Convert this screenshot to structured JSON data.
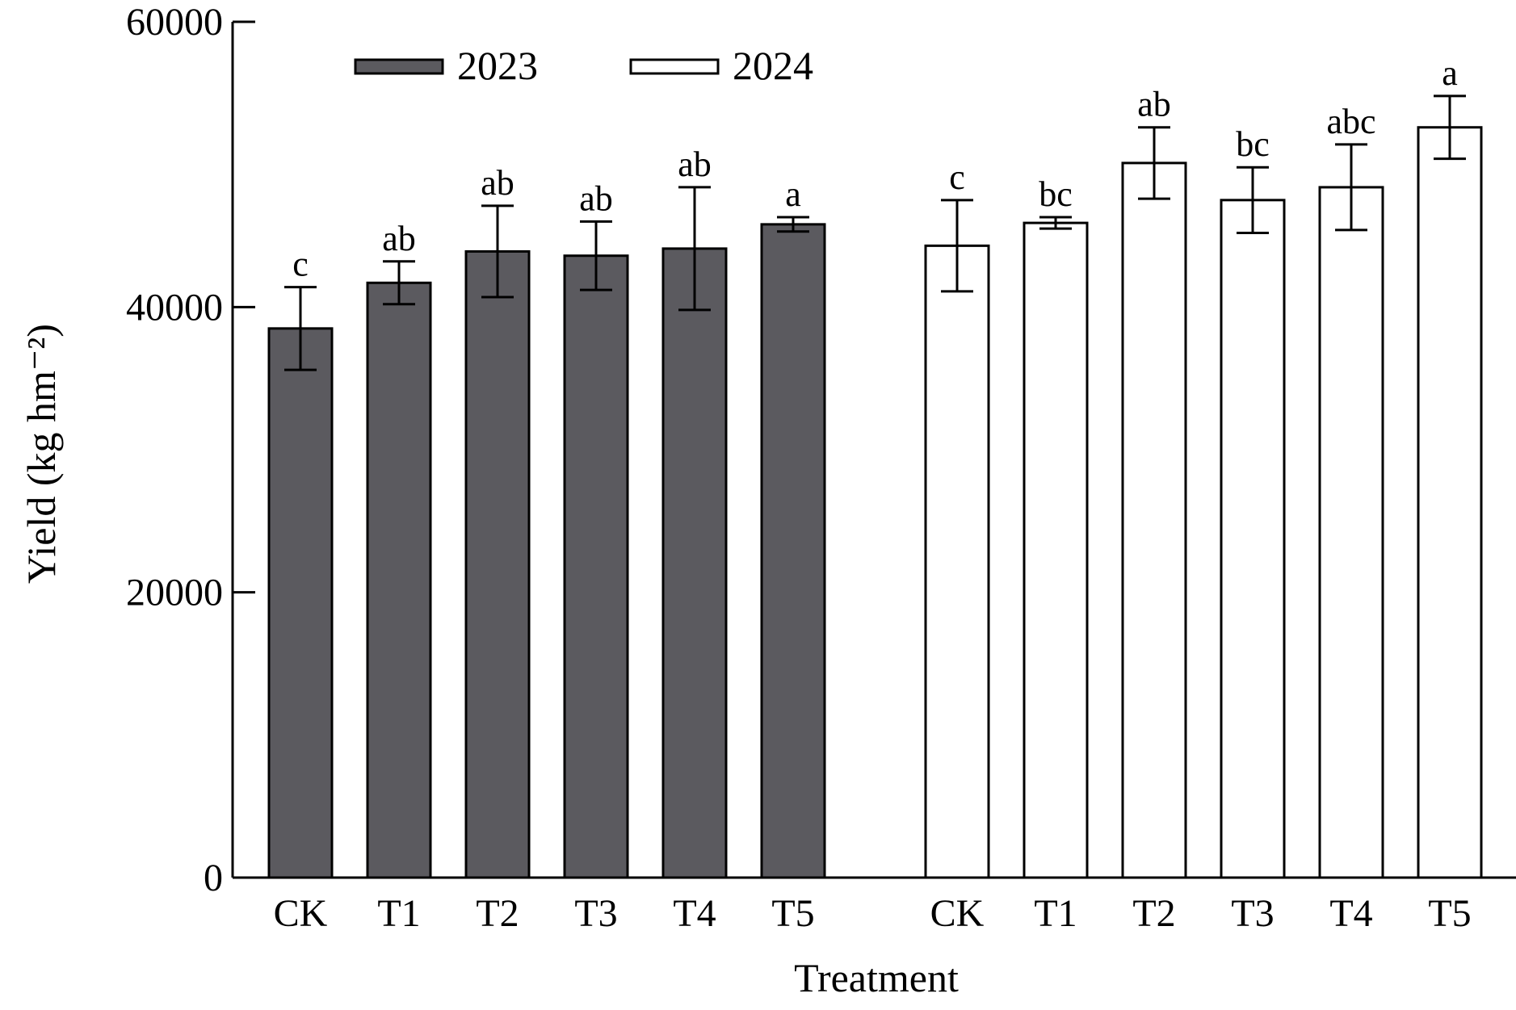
{
  "chart_data": {
    "type": "bar",
    "xlabel": "Treatment",
    "ylabel": "Yield (kg hm⁻²)",
    "ylim": [
      0,
      60000
    ],
    "yticks": [
      0,
      20000,
      40000,
      60000
    ],
    "legend_position": "top-left",
    "groups": [
      {
        "series": "2023",
        "color": "#5b5a5f",
        "categories": [
          "CK",
          "T1",
          "T2",
          "T3",
          "T4",
          "T5"
        ],
        "values": [
          38500,
          41700,
          43900,
          43600,
          44100,
          45800
        ],
        "errors": [
          2900,
          1500,
          3200,
          2400,
          4300,
          500
        ],
        "significance": [
          "c",
          "ab",
          "ab",
          "ab",
          "ab",
          "a"
        ]
      },
      {
        "series": "2024",
        "color": "#ffffff",
        "categories": [
          "CK",
          "T1",
          "T2",
          "T3",
          "T4",
          "T5"
        ],
        "values": [
          44300,
          45900,
          50100,
          47500,
          48400,
          52600
        ],
        "errors": [
          3200,
          400,
          2500,
          2300,
          3000,
          2200
        ],
        "significance": [
          "c",
          "bc",
          "ab",
          "bc",
          "abc",
          "a"
        ]
      }
    ],
    "legend": [
      {
        "label": "2023",
        "color": "#5b5a5f"
      },
      {
        "label": "2024",
        "color": "#ffffff"
      }
    ]
  }
}
